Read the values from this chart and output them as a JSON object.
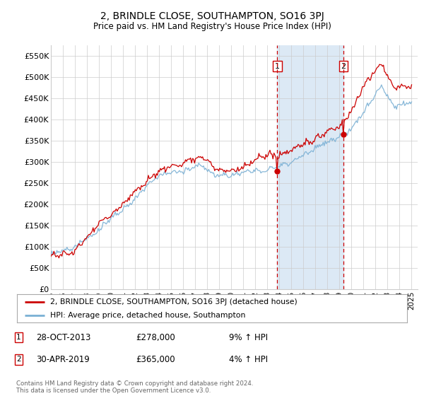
{
  "title": "2, BRINDLE CLOSE, SOUTHAMPTON, SO16 3PJ",
  "subtitle": "Price paid vs. HM Land Registry's House Price Index (HPI)",
  "ylabel_ticks": [
    "£0",
    "£50K",
    "£100K",
    "£150K",
    "£200K",
    "£250K",
    "£300K",
    "£350K",
    "£400K",
    "£450K",
    "£500K",
    "£550K"
  ],
  "ytick_values": [
    0,
    50000,
    100000,
    150000,
    200000,
    250000,
    300000,
    350000,
    400000,
    450000,
    500000,
    550000
  ],
  "ylim": [
    0,
    575000
  ],
  "xlim_start": 1995.0,
  "xlim_end": 2025.5,
  "marker1_x": 2013.83,
  "marker1_y": 278000,
  "marker2_x": 2019.33,
  "marker2_y": 365000,
  "shade_color": "#dce9f5",
  "dashed_color": "#cc0000",
  "legend_entries": [
    "2, BRINDLE CLOSE, SOUTHAMPTON, SO16 3PJ (detached house)",
    "HPI: Average price, detached house, Southampton"
  ],
  "annotation1_date": "28-OCT-2013",
  "annotation1_price": "£278,000",
  "annotation1_hpi": "9% ↑ HPI",
  "annotation2_date": "30-APR-2019",
  "annotation2_price": "£365,000",
  "annotation2_hpi": "4% ↑ HPI",
  "footer": "Contains HM Land Registry data © Crown copyright and database right 2024.\nThis data is licensed under the Open Government Licence v3.0.",
  "line_red_color": "#cc0000",
  "line_blue_color": "#7ab0d4",
  "background_color": "#ffffff",
  "grid_color": "#cccccc"
}
